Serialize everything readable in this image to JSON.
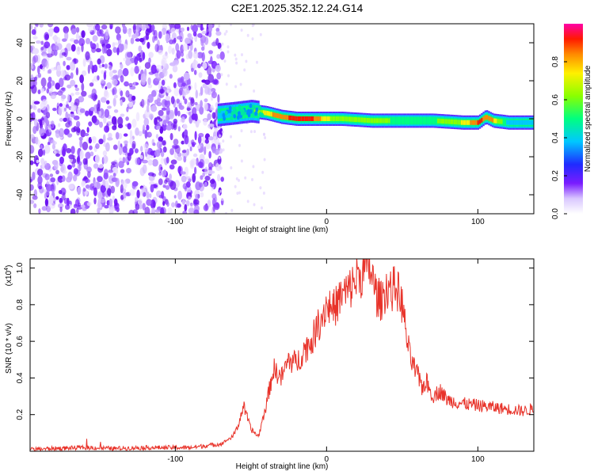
{
  "title": "C2E1.2025.352.12.24.G14",
  "chart_data": [
    {
      "type": "heatmap",
      "title": "C2E1.2025.352.12.24.G14",
      "xlabel": "Height of straight line (km)",
      "ylabel": "Frequency (Hz)",
      "xlim": [
        -196,
        137
      ],
      "ylim": [
        -50,
        50
      ],
      "xticks": [
        -100,
        0,
        100
      ],
      "xtick_labels": [
        "-100",
        "0",
        "100"
      ],
      "yticks": [
        -40,
        -20,
        0,
        20,
        40
      ],
      "ytick_labels": [
        "-40",
        "-20",
        "0",
        "20",
        "40"
      ],
      "colorbar": {
        "label": "Normalized spectral amplitude",
        "range": [
          0,
          1
        ],
        "ticks": [
          0,
          0.2,
          0.4,
          0.6,
          0.8
        ],
        "tick_labels": [
          "0.0",
          "0.2",
          "0.4",
          "0.6",
          "0.8"
        ]
      },
      "noise_region_x": [
        -196,
        -72
      ],
      "ridge": {
        "description_points_x": [
          -72,
          -60,
          -50,
          -40,
          -30,
          -20,
          -10,
          0,
          10,
          30,
          50,
          70,
          90,
          100,
          105,
          110,
          120,
          137
        ],
        "center_freq": [
          2,
          3,
          4,
          3,
          1,
          0,
          0,
          0,
          0,
          -1,
          -1,
          -1,
          -2,
          -2,
          1,
          -1,
          -2,
          -2
        ],
        "amplitude": [
          0.45,
          0.5,
          0.6,
          0.8,
          0.9,
          0.95,
          0.95,
          0.75,
          0.7,
          0.65,
          0.6,
          0.6,
          0.75,
          0.95,
          0.9,
          0.85,
          0.45,
          0.4
        ]
      }
    },
    {
      "type": "line",
      "xlabel": "Height of straight line (km)",
      "ylabel": "SNR (10 * v/v)",
      "y_multiplier_label": "(x10",
      "y_multiplier_exp": "4",
      "xlim": [
        -196,
        137
      ],
      "ylim": [
        0,
        1.05
      ],
      "xticks": [
        -100,
        0,
        100
      ],
      "xtick_labels": [
        "-100",
        "0",
        "100"
      ],
      "yticks": [
        0.2,
        0.4,
        0.6,
        0.8,
        1.0
      ],
      "ytick_labels": [
        "0.2",
        "0.4",
        "0.6",
        "0.8",
        "1.0"
      ],
      "series": [
        {
          "name": "SNR",
          "color": "#e8332a",
          "x": [
            -196,
            -180,
            -160,
            -140,
            -120,
            -100,
            -90,
            -80,
            -70,
            -62,
            -58,
            -55,
            -50,
            -45,
            -40,
            -35,
            -30,
            -25,
            -20,
            -15,
            -10,
            -5,
            0,
            5,
            10,
            15,
            20,
            25,
            28,
            30,
            33,
            36,
            40,
            43,
            46,
            50,
            53,
            55,
            58,
            60,
            63,
            66,
            70,
            75,
            80,
            85,
            90,
            100,
            110,
            120,
            130,
            137
          ],
          "values": [
            0.01,
            0.015,
            0.02,
            0.015,
            0.02,
            0.02,
            0.02,
            0.03,
            0.04,
            0.08,
            0.15,
            0.25,
            0.12,
            0.08,
            0.25,
            0.45,
            0.4,
            0.5,
            0.48,
            0.55,
            0.6,
            0.7,
            0.8,
            0.78,
            0.85,
            0.88,
            0.95,
            0.98,
            1.02,
            0.95,
            0.85,
            0.82,
            0.9,
            0.88,
            0.9,
            0.8,
            0.62,
            0.52,
            0.45,
            0.42,
            0.35,
            0.38,
            0.3,
            0.33,
            0.28,
            0.27,
            0.26,
            0.25,
            0.24,
            0.23,
            0.22,
            0.23
          ]
        }
      ]
    }
  ]
}
